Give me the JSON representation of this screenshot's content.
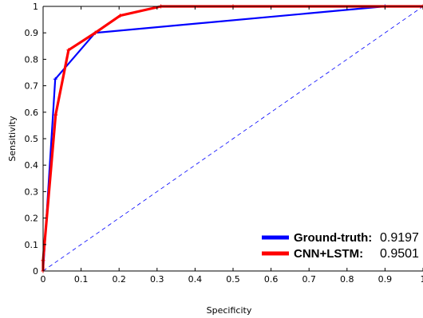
{
  "chart_data": {
    "type": "line",
    "title": "",
    "xlabel": "Specificity",
    "ylabel": "Sensitivity",
    "xlim": [
      0,
      1
    ],
    "ylim": [
      0,
      1
    ],
    "x_ticks": [
      "0",
      "0.1",
      "0.2",
      "0.3",
      "0.4",
      "0.5",
      "0.6",
      "0.7",
      "0.8",
      "0.9",
      "1"
    ],
    "y_ticks": [
      "0",
      "0.1",
      "0.2",
      "0.3",
      "0.4",
      "0.5",
      "0.6",
      "0.7",
      "0.8",
      "0.9",
      "1"
    ],
    "grid": false,
    "legend_position": "bottom-right",
    "reference_line": {
      "style": "dashed",
      "color": "#0000ff",
      "points": [
        [
          0,
          0
        ],
        [
          1,
          1
        ]
      ]
    },
    "series": [
      {
        "name": "Ground-truth:",
        "auc": "0.9197",
        "color": "#0000ff",
        "points": [
          [
            0,
            0
          ],
          [
            0.032,
            0.725
          ],
          [
            0.137,
            0.9
          ],
          [
            0.9,
            1.0
          ],
          [
            1.0,
            1.0
          ]
        ]
      },
      {
        "name": "CNN+LSTM:",
        "auc": "0.9501",
        "color": "#ff0000",
        "points": [
          [
            0,
            0
          ],
          [
            0,
            0.04
          ],
          [
            0.033,
            0.59
          ],
          [
            0.067,
            0.835
          ],
          [
            0.137,
            0.9
          ],
          [
            0.203,
            0.965
          ],
          [
            0.31,
            1.0
          ],
          [
            0.5,
            1.0
          ],
          [
            1.0,
            1.0
          ]
        ]
      }
    ]
  }
}
